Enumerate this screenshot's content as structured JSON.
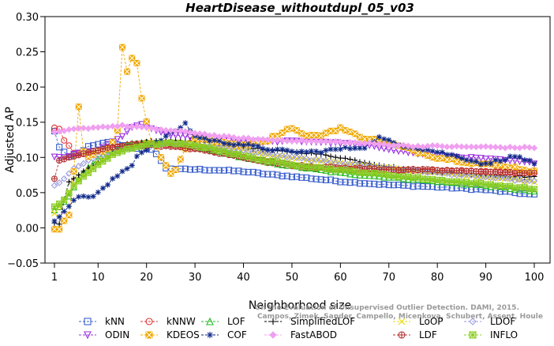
{
  "chart_data": {
    "type": "scatter",
    "title": "HeartDisease_withoutdupl_05_v03",
    "xlabel": "Neighborhood size",
    "ylabel": "Adjusted AP",
    "xlim": [
      1,
      100
    ],
    "ylim": [
      -0.05,
      0.3
    ],
    "xticks": [
      1,
      10,
      20,
      30,
      40,
      50,
      60,
      70,
      80,
      90,
      100
    ],
    "yticks": [
      -0.05,
      0.0,
      0.05,
      0.1,
      0.15,
      0.2,
      0.25,
      0.3
    ],
    "ytick_labels": [
      "−0.05",
      "0.00",
      "0.05",
      "0.10",
      "0.15",
      "0.20",
      "0.25",
      "0.30"
    ],
    "grid": false,
    "legend_position": "bottom",
    "watermark": [
      "Campos, Zimek, Sander, Campello, Micenkova, Schubert, Assent, Houle",
      "On the Evaluation of Unsupervised Outlier Detection. DAMI, 2015."
    ],
    "series": [
      {
        "name": "kNN",
        "color": "#3a5fcd",
        "marker": "square",
        "keypoints": [
          [
            1,
            0.137
          ],
          [
            2,
            0.115
          ],
          [
            4,
            0.1
          ],
          [
            6,
            0.106
          ],
          [
            8,
            0.115
          ],
          [
            10,
            0.118
          ],
          [
            12,
            0.122
          ],
          [
            15,
            0.117
          ],
          [
            18,
            0.112
          ],
          [
            20,
            0.112
          ],
          [
            21,
            0.112
          ],
          [
            22,
            0.105
          ],
          [
            24,
            0.085
          ],
          [
            27,
            0.083
          ],
          [
            30,
            0.083
          ],
          [
            35,
            0.082
          ],
          [
            40,
            0.08
          ],
          [
            45,
            0.076
          ],
          [
            50,
            0.073
          ],
          [
            60,
            0.066
          ],
          [
            70,
            0.061
          ],
          [
            80,
            0.058
          ],
          [
            90,
            0.054
          ],
          [
            100,
            0.047
          ]
        ]
      },
      {
        "name": "kNNW",
        "color": "#e03030",
        "marker": "circle",
        "keypoints": [
          [
            1,
            0.142
          ],
          [
            2,
            0.14
          ],
          [
            3,
            0.125
          ],
          [
            5,
            0.107
          ],
          [
            8,
            0.104
          ],
          [
            10,
            0.108
          ],
          [
            13,
            0.113
          ],
          [
            16,
            0.118
          ],
          [
            20,
            0.12
          ],
          [
            25,
            0.118
          ],
          [
            30,
            0.113
          ],
          [
            35,
            0.108
          ],
          [
            40,
            0.1
          ],
          [
            45,
            0.093
          ],
          [
            50,
            0.087
          ],
          [
            55,
            0.085
          ],
          [
            60,
            0.083
          ],
          [
            65,
            0.083
          ],
          [
            70,
            0.082
          ],
          [
            80,
            0.081
          ],
          [
            90,
            0.08
          ],
          [
            100,
            0.078
          ]
        ]
      },
      {
        "name": "LOF",
        "color": "#22bb22",
        "marker": "triangle-up",
        "keypoints": [
          [
            1,
            0.025
          ],
          [
            2,
            0.03
          ],
          [
            4,
            0.045
          ],
          [
            6,
            0.07
          ],
          [
            8,
            0.085
          ],
          [
            10,
            0.098
          ],
          [
            13,
            0.11
          ],
          [
            16,
            0.118
          ],
          [
            20,
            0.122
          ],
          [
            25,
            0.12
          ],
          [
            30,
            0.115
          ],
          [
            35,
            0.108
          ],
          [
            40,
            0.1
          ],
          [
            45,
            0.093
          ],
          [
            50,
            0.088
          ],
          [
            60,
            0.078
          ],
          [
            70,
            0.072
          ],
          [
            80,
            0.066
          ],
          [
            90,
            0.06
          ],
          [
            100,
            0.052
          ]
        ]
      },
      {
        "name": "SimplifiedLOF",
        "color": "#000000",
        "marker": "plus",
        "keypoints": [
          [
            1,
            0.006
          ],
          [
            2,
            0.005
          ],
          [
            3,
            0.04
          ],
          [
            4,
            0.065
          ],
          [
            5,
            0.07
          ],
          [
            7,
            0.08
          ],
          [
            10,
            0.093
          ],
          [
            13,
            0.105
          ],
          [
            16,
            0.115
          ],
          [
            20,
            0.122
          ],
          [
            25,
            0.124
          ],
          [
            30,
            0.123
          ],
          [
            35,
            0.12
          ],
          [
            40,
            0.115
          ],
          [
            45,
            0.11
          ],
          [
            50,
            0.108
          ],
          [
            55,
            0.105
          ],
          [
            60,
            0.1
          ],
          [
            65,
            0.093
          ],
          [
            70,
            0.087
          ],
          [
            75,
            0.082
          ],
          [
            80,
            0.08
          ],
          [
            90,
            0.075
          ],
          [
            100,
            0.072
          ]
        ]
      },
      {
        "name": "LoOP",
        "color": "#e8d800",
        "marker": "cross",
        "keypoints": [
          [
            1,
            0.02
          ],
          [
            3,
            0.04
          ],
          [
            5,
            0.062
          ],
          [
            8,
            0.08
          ],
          [
            10,
            0.093
          ],
          [
            13,
            0.105
          ],
          [
            16,
            0.115
          ],
          [
            20,
            0.12
          ],
          [
            25,
            0.122
          ],
          [
            30,
            0.12
          ],
          [
            35,
            0.115
          ],
          [
            40,
            0.11
          ],
          [
            45,
            0.104
          ],
          [
            50,
            0.1
          ],
          [
            60,
            0.092
          ],
          [
            70,
            0.085
          ],
          [
            80,
            0.078
          ],
          [
            90,
            0.072
          ],
          [
            100,
            0.066
          ]
        ]
      },
      {
        "name": "LDOF",
        "color": "#9a9ae0",
        "marker": "diamond",
        "keypoints": [
          [
            1,
            0.06
          ],
          [
            3,
            0.07
          ],
          [
            5,
            0.085
          ],
          [
            8,
            0.095
          ],
          [
            10,
            0.102
          ],
          [
            13,
            0.108
          ],
          [
            16,
            0.113
          ],
          [
            20,
            0.118
          ],
          [
            25,
            0.12
          ],
          [
            30,
            0.118
          ],
          [
            35,
            0.114
          ],
          [
            40,
            0.11
          ],
          [
            45,
            0.105
          ],
          [
            50,
            0.1
          ],
          [
            60,
            0.092
          ],
          [
            70,
            0.085
          ],
          [
            80,
            0.078
          ],
          [
            90,
            0.072
          ],
          [
            100,
            0.066
          ]
        ]
      },
      {
        "name": "ODIN",
        "color": "#9a30e0",
        "marker": "triangle-down",
        "keypoints": [
          [
            1,
            0.1
          ],
          [
            3,
            0.1
          ],
          [
            6,
            0.106
          ],
          [
            10,
            0.11
          ],
          [
            13,
            0.122
          ],
          [
            15,
            0.13
          ],
          [
            17,
            0.142
          ],
          [
            19,
            0.147
          ],
          [
            21,
            0.14
          ],
          [
            25,
            0.132
          ],
          [
            30,
            0.128
          ],
          [
            35,
            0.125
          ],
          [
            40,
            0.123
          ],
          [
            45,
            0.122
          ],
          [
            50,
            0.123
          ],
          [
            55,
            0.122
          ],
          [
            60,
            0.12
          ],
          [
            65,
            0.117
          ],
          [
            70,
            0.112
          ],
          [
            75,
            0.106
          ],
          [
            80,
            0.102
          ],
          [
            85,
            0.1
          ],
          [
            90,
            0.098
          ],
          [
            95,
            0.095
          ],
          [
            100,
            0.092
          ]
        ]
      },
      {
        "name": "KDEOS",
        "color": "#f0a800",
        "marker": "box-x",
        "keypoints": [
          [
            1,
            0.0
          ],
          [
            2,
            -0.002
          ],
          [
            3,
            0.01
          ],
          [
            4,
            0.02
          ],
          [
            5,
            0.08
          ],
          [
            6,
            0.173
          ],
          [
            7,
            0.11
          ],
          [
            8,
            0.1
          ],
          [
            9,
            0.105
          ],
          [
            10,
            0.108
          ],
          [
            12,
            0.112
          ],
          [
            13,
            0.122
          ],
          [
            14,
            0.14
          ],
          [
            15,
            0.257
          ],
          [
            16,
            0.221
          ],
          [
            17,
            0.243
          ],
          [
            18,
            0.235
          ],
          [
            19,
            0.184
          ],
          [
            20,
            0.152
          ],
          [
            21,
            0.12
          ],
          [
            22,
            0.115
          ],
          [
            23,
            0.1
          ],
          [
            24,
            0.09
          ],
          [
            25,
            0.078
          ],
          [
            26,
            0.082
          ],
          [
            28,
            0.112
          ],
          [
            30,
            0.128
          ],
          [
            33,
            0.125
          ],
          [
            36,
            0.12
          ],
          [
            40,
            0.118
          ],
          [
            45,
            0.125
          ],
          [
            50,
            0.143
          ],
          [
            52,
            0.133
          ],
          [
            55,
            0.13
          ],
          [
            60,
            0.142
          ],
          [
            62,
            0.135
          ],
          [
            65,
            0.128
          ],
          [
            70,
            0.12
          ],
          [
            75,
            0.11
          ],
          [
            80,
            0.1
          ],
          [
            85,
            0.095
          ],
          [
            90,
            0.09
          ],
          [
            95,
            0.087
          ],
          [
            100,
            0.08
          ]
        ]
      },
      {
        "name": "COF",
        "color": "#102a8a",
        "marker": "asterisk",
        "keypoints": [
          [
            1,
            0.008
          ],
          [
            3,
            0.025
          ],
          [
            5,
            0.04
          ],
          [
            7,
            0.045
          ],
          [
            9,
            0.045
          ],
          [
            11,
            0.055
          ],
          [
            13,
            0.068
          ],
          [
            15,
            0.08
          ],
          [
            17,
            0.09
          ],
          [
            18,
            0.102
          ],
          [
            20,
            0.112
          ],
          [
            22,
            0.12
          ],
          [
            24,
            0.13
          ],
          [
            26,
            0.138
          ],
          [
            28,
            0.148
          ],
          [
            30,
            0.13
          ],
          [
            35,
            0.122
          ],
          [
            40,
            0.118
          ],
          [
            45,
            0.112
          ],
          [
            50,
            0.108
          ],
          [
            55,
            0.108
          ],
          [
            60,
            0.112
          ],
          [
            65,
            0.115
          ],
          [
            68,
            0.128
          ],
          [
            72,
            0.118
          ],
          [
            75,
            0.115
          ],
          [
            80,
            0.108
          ],
          [
            85,
            0.1
          ],
          [
            90,
            0.09
          ],
          [
            92,
            0.095
          ],
          [
            95,
            0.1
          ],
          [
            97,
            0.101
          ],
          [
            100,
            0.09
          ]
        ]
      },
      {
        "name": "FastABOD",
        "color": "#f0a0f0",
        "marker": "diamond-filled",
        "keypoints": [
          [
            1,
            0.135
          ],
          [
            5,
            0.14
          ],
          [
            10,
            0.143
          ],
          [
            15,
            0.145
          ],
          [
            20,
            0.142
          ],
          [
            25,
            0.138
          ],
          [
            30,
            0.135
          ],
          [
            35,
            0.13
          ],
          [
            40,
            0.127
          ],
          [
            45,
            0.125
          ],
          [
            50,
            0.124
          ],
          [
            55,
            0.123
          ],
          [
            60,
            0.122
          ],
          [
            65,
            0.12
          ],
          [
            70,
            0.118
          ],
          [
            75,
            0.116
          ],
          [
            80,
            0.116
          ],
          [
            85,
            0.115
          ],
          [
            90,
            0.115
          ],
          [
            95,
            0.114
          ],
          [
            100,
            0.114
          ]
        ]
      },
      {
        "name": "LDF",
        "color": "#b03030",
        "marker": "circle-plus",
        "keypoints": [
          [
            1,
            0.07
          ],
          [
            2,
            0.095
          ],
          [
            4,
            0.1
          ],
          [
            7,
            0.105
          ],
          [
            10,
            0.11
          ],
          [
            13,
            0.115
          ],
          [
            16,
            0.118
          ],
          [
            20,
            0.118
          ],
          [
            25,
            0.115
          ],
          [
            30,
            0.112
          ],
          [
            35,
            0.106
          ],
          [
            40,
            0.1
          ],
          [
            45,
            0.094
          ],
          [
            50,
            0.09
          ],
          [
            55,
            0.087
          ],
          [
            60,
            0.085
          ],
          [
            65,
            0.084
          ],
          [
            70,
            0.083
          ],
          [
            80,
            0.082
          ],
          [
            90,
            0.08
          ],
          [
            100,
            0.077
          ]
        ]
      },
      {
        "name": "INFLO",
        "color": "#88cc22",
        "marker": "box-star",
        "keypoints": [
          [
            1,
            0.03
          ],
          [
            3,
            0.04
          ],
          [
            5,
            0.06
          ],
          [
            8,
            0.078
          ],
          [
            10,
            0.09
          ],
          [
            13,
            0.103
          ],
          [
            16,
            0.112
          ],
          [
            20,
            0.118
          ],
          [
            25,
            0.12
          ],
          [
            30,
            0.117
          ],
          [
            35,
            0.11
          ],
          [
            40,
            0.102
          ],
          [
            45,
            0.095
          ],
          [
            50,
            0.09
          ],
          [
            60,
            0.082
          ],
          [
            70,
            0.075
          ],
          [
            80,
            0.068
          ],
          [
            90,
            0.062
          ],
          [
            100,
            0.055
          ]
        ]
      }
    ]
  }
}
